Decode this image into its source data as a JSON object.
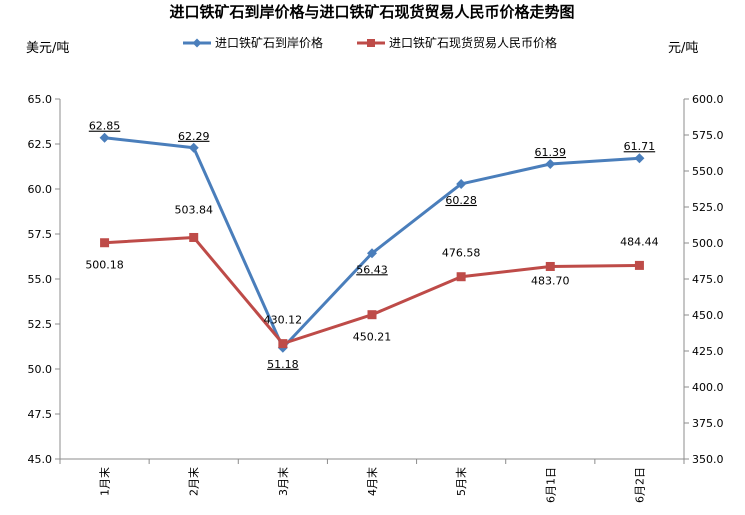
{
  "chart_data": {
    "type": "line",
    "title": "进口铁矿石到岸价格与进口铁矿石现货贸易人民币价格走势图",
    "y_left_unit": "美元/吨",
    "y_right_unit": "元/吨",
    "categories": [
      "1月末",
      "2月末",
      "3月末",
      "4月末",
      "5月末",
      "6月1日",
      "6月2日"
    ],
    "y_left": {
      "min": 45.0,
      "max": 65.0,
      "step": 2.5,
      "ticks": [
        "45.0",
        "47.5",
        "50.0",
        "52.5",
        "55.0",
        "57.5",
        "60.0",
        "62.5",
        "65.0"
      ]
    },
    "y_right": {
      "min": 350.0,
      "max": 600.0,
      "step": 25.0,
      "ticks": [
        "350.0",
        "375.0",
        "400.0",
        "425.0",
        "450.0",
        "475.0",
        "500.0",
        "525.0",
        "550.0",
        "575.0",
        "600.0"
      ]
    },
    "grid": false,
    "legend_position": "top-center",
    "series": [
      {
        "name": "进口铁矿石到岸价格",
        "axis": "left",
        "color": "#4A7EBB",
        "marker": "diamond",
        "values": [
          62.85,
          62.29,
          51.18,
          56.43,
          60.28,
          61.39,
          61.71
        ],
        "labels": [
          "62.85",
          "62.29",
          "51.18",
          "56.43",
          "60.28",
          "61.39",
          "61.71"
        ]
      },
      {
        "name": "进口铁矿石现货贸易人民币价格",
        "axis": "right",
        "color": "#BE4B48",
        "marker": "square",
        "values": [
          500.18,
          503.84,
          430.12,
          450.21,
          476.58,
          483.7,
          484.44
        ],
        "labels": [
          "500.18",
          "503.84",
          "430.12",
          "450.21",
          "476.58",
          "483.70",
          "484.44"
        ]
      }
    ]
  }
}
